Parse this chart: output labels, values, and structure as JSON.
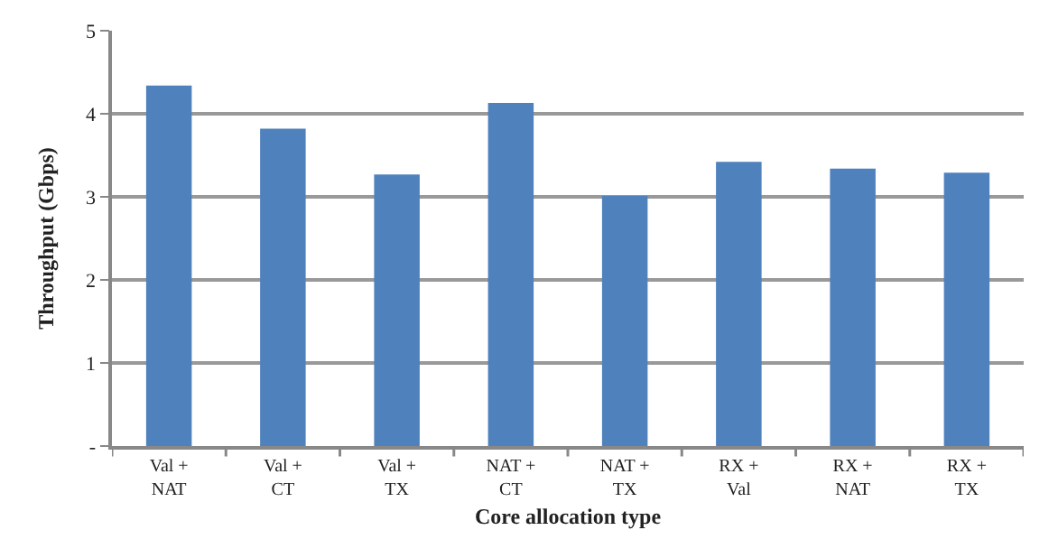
{
  "chart_data": {
    "type": "bar",
    "xlabel": "Core allocation type",
    "ylabel": "Throughput (Gbps)",
    "categories": [
      "Val +\nNAT",
      "Val +\nCT",
      "Val +\nTX",
      "NAT +\nCT",
      "NAT +\nTX",
      "RX +\nVal",
      "RX +\nNAT",
      "RX +\nTX"
    ],
    "values": [
      4.34,
      3.82,
      3.27,
      4.13,
      3.01,
      3.42,
      3.34,
      3.29
    ],
    "color": "#4f81bd",
    "ylim": [
      0,
      5
    ],
    "yticks": [
      {
        "value": 0,
        "label": "-"
      },
      1,
      2,
      3,
      4,
      5
    ],
    "grid": "y"
  }
}
